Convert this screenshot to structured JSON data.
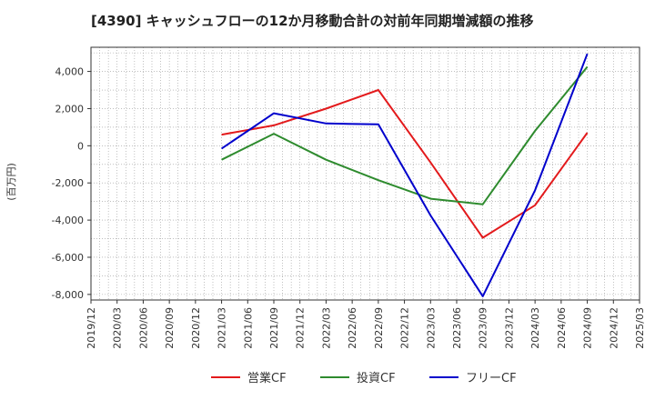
{
  "chart_data": {
    "type": "line",
    "title": "[4390]  キャッシュフローの12か月移動合計の対前年同期増減額の推移",
    "ylabel": "(百万円)",
    "xlabel": "",
    "ylim": [
      -8300,
      5300
    ],
    "yticks": [
      4000,
      2000,
      0,
      -2000,
      -4000,
      -6000,
      -8000
    ],
    "ytick_labels": [
      "4,000",
      "2,000",
      "0",
      "-2,000",
      "-4,000",
      "-6,000",
      "-8,000"
    ],
    "xticks": [
      "2019/12",
      "2020/03",
      "2020/06",
      "2020/09",
      "2020/12",
      "2021/03",
      "2021/06",
      "2021/09",
      "2021/12",
      "2022/03",
      "2022/06",
      "2022/09",
      "2022/12",
      "2023/03",
      "2023/06",
      "2023/09",
      "2023/12",
      "2024/03",
      "2024/06",
      "2024/09",
      "2024/12",
      "2025/03"
    ],
    "grid": true,
    "legend_position": "bottom",
    "series": [
      {
        "name": "営業CF",
        "color": "#e31a1c",
        "points": [
          {
            "x": "2021/03",
            "y": 600
          },
          {
            "x": "2021/09",
            "y": 1100
          },
          {
            "x": "2022/03",
            "y": 2000
          },
          {
            "x": "2022/09",
            "y": 3000
          },
          {
            "x": "2023/03",
            "y": -900
          },
          {
            "x": "2023/09",
            "y": -4950
          },
          {
            "x": "2024/03",
            "y": -3200
          },
          {
            "x": "2024/09",
            "y": 700
          }
        ]
      },
      {
        "name": "投資CF",
        "color": "#2e8b2e",
        "points": [
          {
            "x": "2021/03",
            "y": -750
          },
          {
            "x": "2021/09",
            "y": 650
          },
          {
            "x": "2022/03",
            "y": -750
          },
          {
            "x": "2022/09",
            "y": -1850
          },
          {
            "x": "2023/03",
            "y": -2850
          },
          {
            "x": "2023/09",
            "y": -3150
          },
          {
            "x": "2024/03",
            "y": 800
          },
          {
            "x": "2024/09",
            "y": 4250
          }
        ]
      },
      {
        "name": "フリーCF",
        "color": "#0000cc",
        "points": [
          {
            "x": "2021/03",
            "y": -150
          },
          {
            "x": "2021/09",
            "y": 1750
          },
          {
            "x": "2022/03",
            "y": 1200
          },
          {
            "x": "2022/09",
            "y": 1150
          },
          {
            "x": "2023/03",
            "y": -3750
          },
          {
            "x": "2023/09",
            "y": -8100
          },
          {
            "x": "2024/03",
            "y": -2400
          },
          {
            "x": "2024/09",
            "y": 4950
          }
        ]
      }
    ]
  }
}
